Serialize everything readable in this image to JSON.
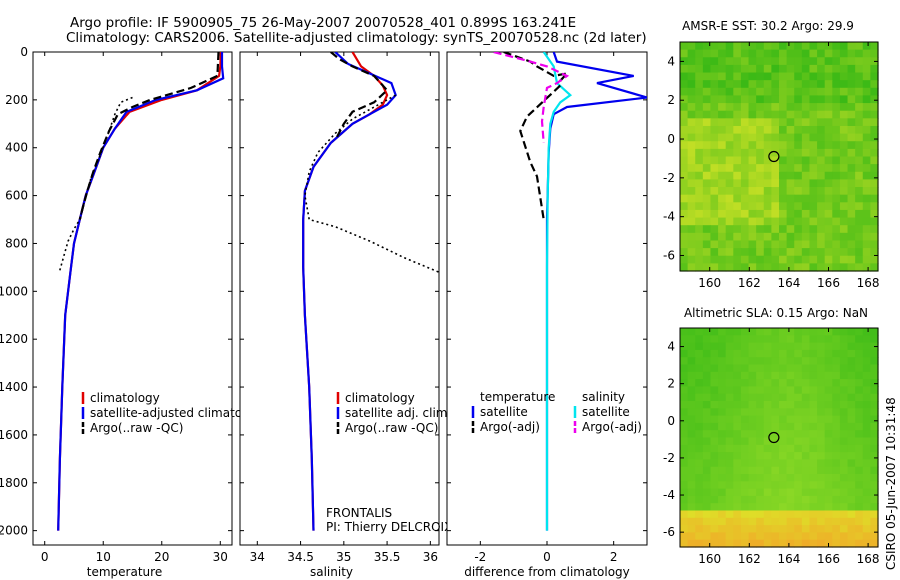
{
  "header": {
    "line1": "Argo profile: IF 5900905_75 26-May-2007 20070528_401 0.899S 163.241E",
    "line2": "Climatology: CARS2006. Satellite-adjusted climatology: synTS_20070528.nc (2d later)"
  },
  "side_label": "CSIRO 05-Jun-2007 10:31:48",
  "colors": {
    "climatology": "#e00000",
    "satellite": "#0000ee",
    "argo": "#000000",
    "cyan": "#00e5ee",
    "magenta": "#ee00ee"
  },
  "chart_data": [
    {
      "type": "line",
      "id": "temperature",
      "xlabel": "temperature",
      "ylabel": "",
      "xlim": [
        -2,
        32
      ],
      "ylim": [
        2060,
        0
      ],
      "xticks": [
        0,
        10,
        20,
        30
      ],
      "yticks": [
        0,
        200,
        400,
        600,
        800,
        1000,
        1200,
        1400,
        1600,
        1800,
        2000
      ],
      "legend": {
        "placement": "lower-center",
        "entries": [
          "climatology",
          "satellite-adjusted climatology",
          "Argo(..raw -QC)"
        ]
      },
      "series": [
        {
          "name": "climatology",
          "style": "solid",
          "color": "#e00000",
          "x": [
            30.1,
            30.0,
            29.8,
            26,
            20,
            14.5,
            12,
            10,
            8.5,
            7,
            6,
            5,
            4.5,
            3.5,
            3,
            2.6,
            2.3
          ],
          "y": [
            0,
            60,
            100,
            160,
            200,
            250,
            320,
            400,
            500,
            600,
            700,
            800,
            900,
            1100,
            1400,
            1700,
            2000
          ]
        },
        {
          "name": "satellite-adjusted climatology",
          "style": "solid",
          "color": "#0000ee",
          "x": [
            30.3,
            30.3,
            30.5,
            26,
            19,
            14,
            12,
            10,
            8.5,
            7,
            6,
            5,
            4.5,
            3.5,
            3,
            2.6,
            2.3
          ],
          "y": [
            0,
            60,
            110,
            160,
            200,
            250,
            320,
            400,
            500,
            600,
            700,
            800,
            900,
            1100,
            1400,
            1700,
            2000
          ]
        },
        {
          "name": "Argo(..raw -QC)",
          "style": "dashed",
          "color": "#000000",
          "x": [
            29.7,
            29.5,
            25,
            18,
            15,
            12.5,
            11,
            9.5,
            8.3,
            7.3,
            6.5,
            6
          ],
          "y": [
            0,
            100,
            150,
            200,
            230,
            260,
            330,
            420,
            500,
            580,
            650,
            700
          ]
        },
        {
          "name": "Argo(..raw -QC)",
          "style": "dotted",
          "color": "#000000",
          "x": [
            15,
            13,
            12,
            11,
            9.5,
            8,
            7,
            6.5,
            6,
            5,
            4,
            3.3,
            2.5
          ],
          "y": [
            190,
            210,
            260,
            330,
            430,
            520,
            600,
            650,
            700,
            740,
            790,
            850,
            920
          ]
        }
      ]
    },
    {
      "type": "line",
      "id": "salinity",
      "xlabel": "salinity",
      "ylabel": "",
      "xlim": [
        33.8,
        36.1
      ],
      "ylim": [
        2060,
        0
      ],
      "xticks": [
        34,
        34.5,
        35,
        35.5,
        36
      ],
      "yticks": [
        0,
        200,
        400,
        600,
        800,
        1000,
        1200,
        1400,
        1600,
        1800,
        2000
      ],
      "legend": {
        "placement": "lower-center",
        "entries": [
          "climatology",
          "satellite adj. clim.",
          "Argo(..raw -QC)"
        ]
      },
      "annotations": [
        "FRONTALIS",
        "PI: Thierry DELCROIX"
      ],
      "series": [
        {
          "name": "climatology",
          "style": "solid",
          "color": "#e00000",
          "x": [
            35.1,
            35.2,
            35.35,
            35.45,
            35.5,
            35.45,
            35.3,
            35.1,
            34.85,
            34.65,
            34.55,
            34.53,
            34.53,
            34.55,
            34.6,
            34.63,
            34.65
          ],
          "y": [
            0,
            60,
            100,
            140,
            180,
            220,
            260,
            300,
            380,
            480,
            580,
            700,
            900,
            1100,
            1400,
            1700,
            2000
          ]
        },
        {
          "name": "satellite adj. clim.",
          "style": "solid",
          "color": "#0000ee",
          "x": [
            34.9,
            35.05,
            35.3,
            35.55,
            35.6,
            35.5,
            35.3,
            35.1,
            34.85,
            34.65,
            34.55,
            34.53,
            34.53,
            34.55,
            34.6,
            34.63,
            34.65
          ],
          "y": [
            0,
            50,
            90,
            130,
            180,
            220,
            260,
            300,
            380,
            480,
            580,
            700,
            900,
            1100,
            1400,
            1700,
            2000
          ]
        },
        {
          "name": "Argo(..raw -QC)",
          "style": "dashed",
          "color": "#000000",
          "x": [
            34.85,
            34.95,
            35.1,
            35.35,
            35.5,
            35.35,
            35.1,
            35.0,
            34.9
          ],
          "y": [
            0,
            30,
            60,
            100,
            160,
            210,
            250,
            300,
            370
          ]
        },
        {
          "name": "Argo(..raw -QC)",
          "style": "dotted",
          "color": "#000000",
          "x": [
            35.6,
            35.4,
            35.1,
            34.9,
            34.7,
            34.6,
            34.55,
            34.6,
            34.9,
            35.3,
            35.7,
            36.1
          ],
          "y": [
            180,
            220,
            280,
            340,
            420,
            500,
            600,
            700,
            730,
            790,
            860,
            920
          ]
        }
      ]
    },
    {
      "type": "line",
      "id": "difference",
      "xlabel": "difference from climatology",
      "ylabel": "",
      "xlim": [
        -3,
        3
      ],
      "ylim": [
        2060,
        0
      ],
      "xticks": [
        -2,
        0,
        2
      ],
      "yticks": [
        0,
        200,
        400,
        600,
        800,
        1000,
        1200,
        1400,
        1600,
        1800,
        2000
      ],
      "legend": {
        "placement": "lower-center",
        "groups": [
          {
            "title": "temperature",
            "entries": [
              "satellite",
              "Argo(-adj)"
            ]
          },
          {
            "title": "salinity",
            "entries": [
              "satellite",
              "Argo(-adj)"
            ]
          }
        ]
      },
      "series": [
        {
          "name": "temperature satellite",
          "style": "solid",
          "color": "#0000ee",
          "x": [
            0.2,
            0.3,
            2.6,
            1.5,
            3.0,
            0.6,
            0.2,
            0.1,
            0.05,
            0.0,
            0.0,
            0.0,
            0.0
          ],
          "y": [
            0,
            40,
            100,
            130,
            190,
            230,
            260,
            320,
            420,
            700,
            1200,
            1600,
            2000
          ]
        },
        {
          "name": "salinity satellite",
          "style": "solid",
          "color": "#00e5ee",
          "x": [
            -0.1,
            0.2,
            0.3,
            0.7,
            0.4,
            0.2,
            0.1,
            0.05,
            0.02,
            0.0,
            0.0,
            0.0
          ],
          "y": [
            0,
            60,
            130,
            180,
            210,
            250,
            300,
            400,
            600,
            900,
            1500,
            2000
          ]
        },
        {
          "name": "temperature Argo(-adj)",
          "style": "dashed",
          "color": "#000000",
          "x": [
            -1.3,
            -0.5,
            -0.3,
            0.2,
            0.6,
            0.4,
            0.4,
            -0.6,
            -0.8,
            -0.5,
            -0.3,
            -0.1
          ],
          "y": [
            0,
            40,
            60,
            100,
            90,
            120,
            140,
            270,
            330,
            460,
            520,
            700
          ]
        },
        {
          "name": "salinity Argo(-adj)",
          "style": "dashed",
          "color": "#ee00ee",
          "x": [
            -1.6,
            -0.5,
            0.0,
            0.3,
            0.6,
            0.3,
            0.0,
            -0.1,
            -0.15,
            -0.1
          ],
          "y": [
            0,
            40,
            60,
            80,
            100,
            130,
            150,
            230,
            290,
            380
          ]
        }
      ]
    },
    {
      "type": "heatmap",
      "id": "amsre-sst",
      "title": "AMSR-E SST: 30.2 Argo: 29.9",
      "xlim": [
        158.5,
        168.5
      ],
      "ylim": [
        -6.8,
        5
      ],
      "xticks": [
        160,
        162,
        164,
        166,
        168
      ],
      "yticks": [
        -6,
        -4,
        -2,
        0,
        2,
        4
      ],
      "argo_position": {
        "lon": 163.241,
        "lat": -0.899
      },
      "colormap": "green-yellow"
    },
    {
      "type": "heatmap",
      "id": "altimetric-sla",
      "title": "Altimetric SLA: 0.15 Argo: NaN",
      "xlim": [
        158.5,
        168.5
      ],
      "ylim": [
        -6.8,
        5
      ],
      "xticks": [
        160,
        162,
        164,
        166,
        168
      ],
      "yticks": [
        -6,
        -4,
        -2,
        0,
        2,
        4
      ],
      "argo_position": {
        "lon": 163.241,
        "lat": -0.899
      },
      "colormap": "green-yellow-orange"
    }
  ]
}
